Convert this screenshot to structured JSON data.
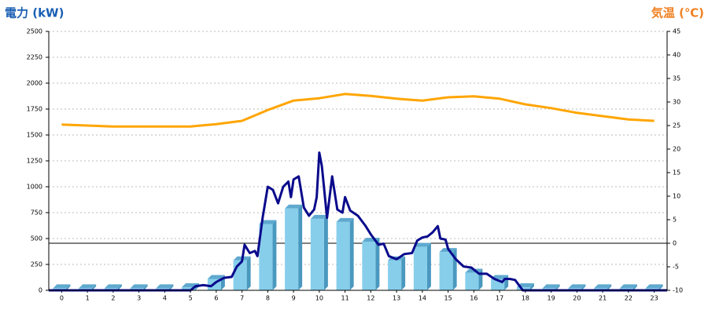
{
  "chart_data": {
    "type": "bar",
    "y_label": "電力 (kW)",
    "y2_label": "気温 (℃)",
    "categories": [
      "0",
      "1",
      "2",
      "3",
      "4",
      "5",
      "6",
      "7",
      "8",
      "9",
      "10",
      "11",
      "12",
      "13",
      "14",
      "15",
      "16",
      "17",
      "18",
      "19",
      "20",
      "21",
      "22",
      "23"
    ],
    "xlim": [
      -0.5,
      23.5
    ],
    "ylim": [
      0,
      2500
    ],
    "yticks": [
      0,
      250,
      500,
      750,
      1000,
      1250,
      1500,
      1750,
      2000,
      2250,
      2500
    ],
    "y2lim": [
      -10,
      45
    ],
    "y2ticks": [
      -10,
      -5,
      0,
      5,
      10,
      15,
      20,
      25,
      30,
      35,
      40,
      45
    ],
    "y2_reference": 0,
    "grid": true,
    "series": [
      {
        "type": "bar",
        "color": "#87ceeb",
        "values": [
          20,
          20,
          20,
          20,
          20,
          30,
          110,
          290,
          640,
          790,
          690,
          660,
          470,
          290,
          420,
          370,
          170,
          110,
          30,
          20,
          20,
          20,
          20,
          20
        ]
      },
      {
        "type": "line",
        "color": "#0a0a8c",
        "x": [
          -0.5,
          5.0,
          5.2,
          5.5,
          5.8,
          6.0,
          6.3,
          6.6,
          6.8,
          7.0,
          7.1,
          7.3,
          7.5,
          7.6,
          7.8,
          8.0,
          8.2,
          8.4,
          8.6,
          8.8,
          8.9,
          9.0,
          9.2,
          9.4,
          9.6,
          9.8,
          9.9,
          10.0,
          10.1,
          10.3,
          10.5,
          10.7,
          10.9,
          11.0,
          11.2,
          11.5,
          11.8,
          12.0,
          12.3,
          12.5,
          12.7,
          13.0,
          13.3,
          13.6,
          13.8,
          14.0,
          14.2,
          14.4,
          14.6,
          14.7,
          14.9,
          15.0,
          15.3,
          15.6,
          15.9,
          16.2,
          16.5,
          16.8,
          17.1,
          17.2,
          17.4,
          17.6,
          17.9,
          23.5
        ],
        "values": [
          0,
          0,
          40,
          50,
          40,
          80,
          120,
          130,
          230,
          280,
          440,
          360,
          380,
          330,
          700,
          1000,
          970,
          840,
          1000,
          1050,
          900,
          1070,
          1100,
          800,
          720,
          780,
          900,
          1330,
          1200,
          700,
          1100,
          780,
          750,
          900,
          770,
          720,
          620,
          540,
          440,
          450,
          330,
          300,
          350,
          360,
          480,
          510,
          520,
          560,
          620,
          500,
          490,
          400,
          300,
          230,
          220,
          160,
          160,
          110,
          80,
          110,
          110,
          100,
          0,
          0
        ]
      },
      {
        "type": "line",
        "axis": "y2",
        "color": "#ffa500",
        "values": [
          25.2,
          25,
          24.8,
          24.8,
          24.8,
          24.8,
          25.3,
          26,
          28.3,
          30.3,
          30.8,
          31.7,
          31.3,
          30.7,
          30.3,
          31,
          31.2,
          30.7,
          29.5,
          28.7,
          27.7,
          27,
          26.3,
          26
        ]
      }
    ]
  }
}
